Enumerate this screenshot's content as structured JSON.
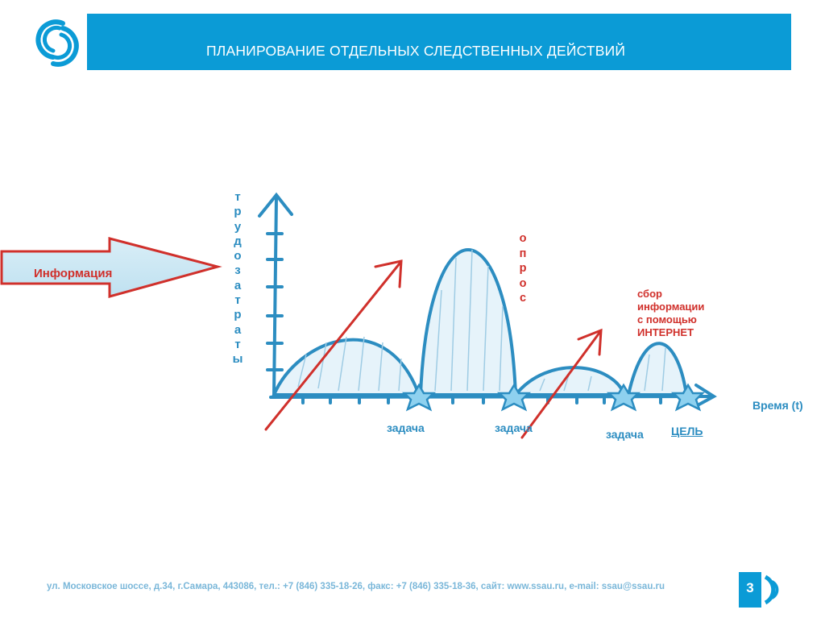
{
  "header": {
    "title": "ПЛАНИРОВАНИЕ ОТДЕЛЬНЫХ СЛЕДСТВЕННЫХ ДЕЙСТВИЙ"
  },
  "diagram": {
    "info_label": "Информация",
    "y_axis_letters": [
      "т",
      "р",
      "у",
      "д",
      "о",
      "з",
      "а",
      "т",
      "р",
      "а",
      "т",
      "ы"
    ],
    "survey_letters": [
      "о",
      "п",
      "р",
      "о",
      "с"
    ],
    "internet_lines": [
      "сбор",
      "информации",
      "с помощью",
      "ИНТЕРНЕТ"
    ],
    "x_axis_label": "Время (t)",
    "task_labels": [
      "задача",
      "задача",
      "задача"
    ],
    "goal_label": "ЦЕЛЬ"
  },
  "footer": {
    "address": "ул. Московское шоссе, д.34, г.Самара, 443086, тел.: +7 (846) 335-18-26, факс: +7 (846) 335-18-36, сайт: www.ssau.ru, e-mail: ssau@ssau.ru",
    "page_number": "3"
  },
  "colors": {
    "brand_blue": "#0b9bd6",
    "diagram_blue": "#2c8dc1",
    "red": "#d0302b"
  }
}
